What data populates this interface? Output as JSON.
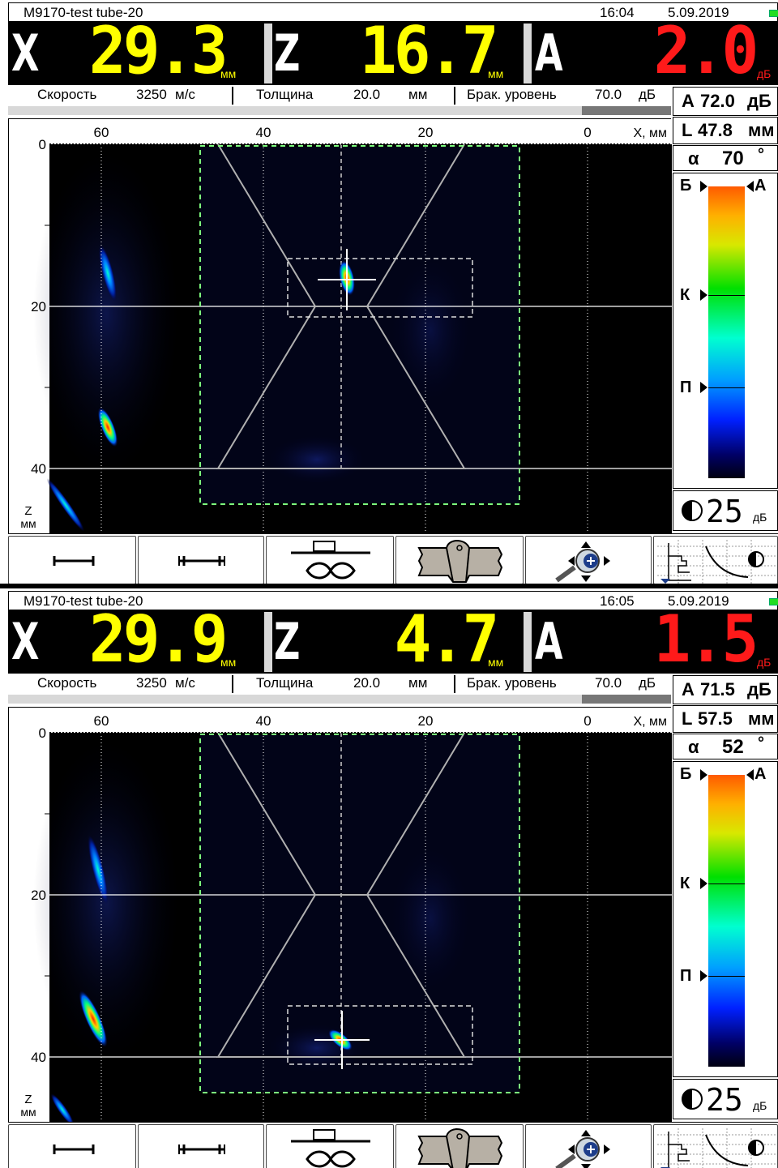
{
  "screens": [
    {
      "title": {
        "device": "M9170-test tube-20",
        "time": "16:04",
        "date": "5.09.2019"
      },
      "readouts": {
        "x": {
          "letter": "X",
          "value": "29.3",
          "unit": "мм"
        },
        "z": {
          "letter": "Z",
          "value": "16.7",
          "unit": "мм"
        },
        "a": {
          "letter": "A",
          "value": "2.0",
          "unit": "дБ"
        }
      },
      "params": {
        "speed_label": "Скорость",
        "speed_value": "3250",
        "speed_unit": "м/с",
        "thickness_label": "Толщина",
        "thickness_value": "20.0",
        "thickness_unit": "мм",
        "reject_label": "Брак. уровень",
        "reject_value": "70.0",
        "reject_unit": "дБ"
      },
      "side": {
        "a_label": "А",
        "a_value": "72.0",
        "a_unit": "дБ",
        "l_label": "L",
        "l_value": "47.8",
        "l_unit": "мм",
        "alpha_label": "α",
        "alpha_value": "70",
        "alpha_unit": "°",
        "scale_labels": {
          "b": "Б",
          "a": "А",
          "k": "К",
          "p": "П"
        },
        "gain_value": "25",
        "gain_unit": "дБ"
      },
      "scan": {
        "x_ticks": [
          "60",
          "40",
          "20",
          "0"
        ],
        "x_axis_label": "X, мм",
        "z_ticks": [
          "0",
          "20",
          "40"
        ],
        "z_axis_label": "Z",
        "z_axis_unit": "мм",
        "defect_label": "reflector",
        "reflector_x_mm": 29.3,
        "reflector_z_mm": 16.7
      }
    },
    {
      "title": {
        "device": "M9170-test tube-20",
        "time": "16:05",
        "date": "5.09.2019"
      },
      "readouts": {
        "x": {
          "letter": "X",
          "value": "29.9",
          "unit": "мм"
        },
        "z": {
          "letter": "Z",
          "value": "4.7",
          "unit": "мм"
        },
        "a": {
          "letter": "A",
          "value": "1.5",
          "unit": "дБ"
        }
      },
      "params": {
        "speed_label": "Скорость",
        "speed_value": "3250",
        "speed_unit": "м/с",
        "thickness_label": "Толщина",
        "thickness_value": "20.0",
        "thickness_unit": "мм",
        "reject_label": "Брак. уровень",
        "reject_value": "70.0",
        "reject_unit": "дБ"
      },
      "side": {
        "a_label": "А",
        "a_value": "71.5",
        "a_unit": "дБ",
        "l_label": "L",
        "l_value": "57.5",
        "l_unit": "мм",
        "alpha_label": "α",
        "alpha_value": "52",
        "alpha_unit": "°",
        "scale_labels": {
          "b": "Б",
          "a": "А",
          "k": "К",
          "p": "П"
        },
        "gain_value": "25",
        "gain_unit": "дБ"
      },
      "scan": {
        "x_ticks": [
          "60",
          "40",
          "20",
          "0"
        ],
        "x_axis_label": "X, мм",
        "z_ticks": [
          "0",
          "20",
          "40"
        ],
        "z_axis_label": "Z",
        "z_axis_unit": "мм",
        "defect_label": "reflector",
        "reflector_x_mm": 29.9,
        "reflector_z_mm": 35.3
      }
    }
  ],
  "colors": {
    "readout_x": "#ffff00",
    "readout_z": "#ffff00",
    "readout_a": "#ff1a1a",
    "gate": "#7dff7d"
  },
  "toolbar_icons": [
    "ruler-single-icon",
    "ruler-double-icon",
    "weld-infinity-icon",
    "weld-profile-icon",
    "zoom-pan-icon",
    "tcg-curve-icon"
  ]
}
